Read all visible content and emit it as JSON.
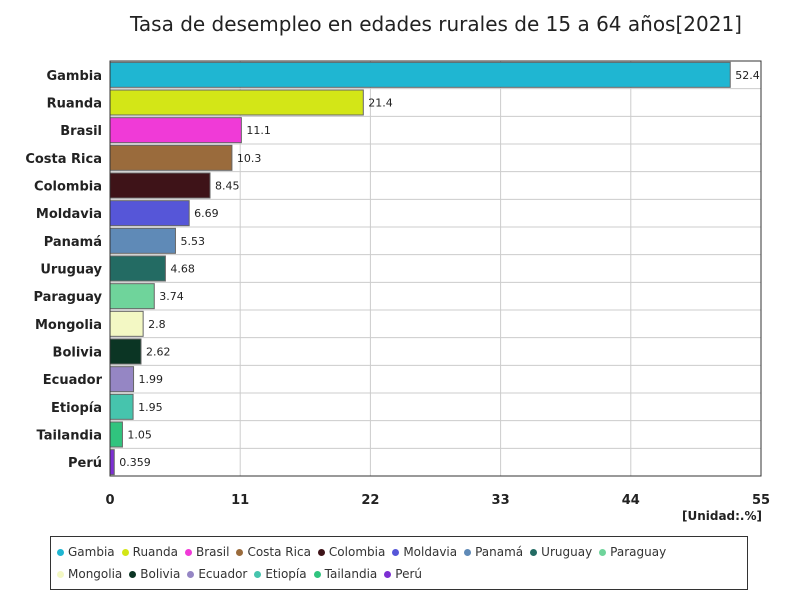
{
  "chart_data": {
    "type": "bar",
    "orientation": "horizontal",
    "title": "Tasa de desempleo en edades rurales de 15 a 64 años[2021]",
    "unit_label": "[Unidad:.%]",
    "xlim": [
      0,
      55
    ],
    "x_ticks": [
      "0",
      "11",
      "22",
      "33",
      "44",
      "55"
    ],
    "grid": true,
    "legend_position": "bottom",
    "categories": [
      "Gambia",
      "Ruanda",
      "Brasil",
      "Costa Rica",
      "Colombia",
      "Moldavia",
      "Panamá",
      "Uruguay",
      "Paraguay",
      "Mongolia",
      "Bolivia",
      "Ecuador",
      "Etiopía",
      "Tailandia",
      "Perú"
    ],
    "values": [
      52.4,
      21.4,
      11.1,
      10.3,
      8.45,
      6.69,
      5.53,
      4.68,
      3.74,
      2.8,
      2.62,
      1.99,
      1.95,
      1.05,
      0.359
    ],
    "value_labels": [
      "52.4",
      "21.4",
      "11.1",
      "10.3",
      "8.45",
      "6.69",
      "5.53",
      "4.68",
      "3.74",
      "2.8",
      "2.62",
      "1.99",
      "1.95",
      "1.05",
      "0.359"
    ],
    "colors": [
      "#1fb6d2",
      "#d3e617",
      "#f03ad7",
      "#9a6b3c",
      "#3e1318",
      "#5656d8",
      "#5f8ab7",
      "#236b63",
      "#6fd49b",
      "#f3f8c4",
      "#0b3524",
      "#9586c4",
      "#46c4ad",
      "#30c47e",
      "#7d2fd3"
    ]
  }
}
